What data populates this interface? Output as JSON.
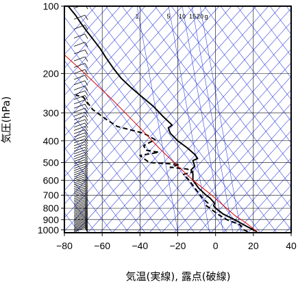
{
  "chart_data": {
    "type": "line",
    "title": "",
    "xlabel": "気温(実線), 露点(破線)",
    "ylabel": "気圧(hPa)",
    "xlim": [
      -80,
      40
    ],
    "ylim": [
      1030,
      100
    ],
    "y_scale": "log",
    "x_ticks": [
      -80,
      -60,
      -40,
      -20,
      0,
      20,
      40
    ],
    "x_tick_labels": [
      "−80",
      "−60",
      "−40",
      "−20",
      "0",
      "20",
      "40"
    ],
    "y_ticks": [
      100,
      200,
      300,
      400,
      500,
      600,
      700,
      800,
      900,
      1000
    ],
    "y_tick_labels": [
      "100",
      "200",
      "300",
      "400",
      "500",
      "600",
      "700",
      "800",
      "900",
      "1000"
    ],
    "mixing_ratio_labels": [
      "1",
      "5",
      "10",
      "15",
      "20",
      "g"
    ],
    "grid": true,
    "series": [
      {
        "role": "temperature",
        "style": "solid",
        "color": "#000000",
        "points": [
          [
            22.0,
            1020
          ],
          [
            20.0,
            1000
          ],
          [
            15.0,
            950
          ],
          [
            10.0,
            900
          ],
          [
            4.0,
            850
          ],
          [
            0.0,
            800
          ],
          [
            -1.0,
            780
          ],
          [
            -0.5,
            760
          ],
          [
            -3.0,
            720
          ],
          [
            -5.0,
            700
          ],
          [
            -9.0,
            650
          ],
          [
            -12.0,
            600
          ],
          [
            -12.0,
            560
          ],
          [
            -13.0,
            540
          ],
          [
            -11.0,
            520
          ],
          [
            -12.0,
            490
          ],
          [
            -9.5,
            480
          ],
          [
            -11.0,
            460
          ],
          [
            -15.0,
            430
          ],
          [
            -20.0,
            400
          ],
          [
            -24.0,
            370
          ],
          [
            -25.0,
            350
          ],
          [
            -23.0,
            340
          ],
          [
            -28.0,
            310
          ],
          [
            -33.0,
            280
          ],
          [
            -40.0,
            250
          ],
          [
            -45.0,
            230
          ],
          [
            -50.0,
            210
          ],
          [
            -54.0,
            190
          ],
          [
            -58.0,
            170
          ],
          [
            -61.0,
            155
          ],
          [
            -65.0,
            140
          ],
          [
            -68.0,
            130
          ],
          [
            -71.0,
            120
          ],
          [
            -74.0,
            110
          ],
          [
            -78.0,
            100
          ]
        ]
      },
      {
        "role": "dewpoint",
        "style": "dashed",
        "color": "#000000",
        "points": [
          [
            17.0,
            1020
          ],
          [
            15.0,
            1000
          ],
          [
            13.0,
            950
          ],
          [
            6.0,
            900
          ],
          [
            1.0,
            850
          ],
          [
            -3.0,
            800
          ],
          [
            -5.0,
            780
          ],
          [
            -4.0,
            760
          ],
          [
            -7.0,
            720
          ],
          [
            -11.0,
            650
          ],
          [
            -14.0,
            600
          ],
          [
            -17.0,
            565
          ],
          [
            -12.0,
            550
          ],
          [
            -15.0,
            535
          ],
          [
            -24.0,
            525
          ],
          [
            -19.0,
            510
          ],
          [
            -35.0,
            500
          ],
          [
            -38.0,
            480
          ],
          [
            -40.0,
            465
          ],
          [
            -30.0,
            450
          ],
          [
            -37.0,
            440
          ],
          [
            -38.0,
            420
          ],
          [
            -32.0,
            395
          ],
          [
            -38.0,
            370
          ],
          [
            -52.0,
            345
          ],
          [
            -58.0,
            320
          ],
          [
            -65.0,
            290
          ],
          [
            -70.0,
            255
          ],
          [
            -74.0,
            250
          ]
        ]
      },
      {
        "role": "parcel",
        "style": "solid",
        "color": "#dd0000",
        "points": [
          [
            22.0,
            1020
          ],
          [
            16.0,
            930
          ],
          [
            10.0,
            860
          ],
          [
            5.0,
            790
          ],
          [
            -2.0,
            700
          ],
          [
            -12.0,
            600
          ],
          [
            -22.0,
            500
          ],
          [
            -30.0,
            430
          ],
          [
            -40.0,
            350
          ],
          [
            -55.0,
            260
          ],
          [
            -72.0,
            190
          ],
          [
            -80.0,
            165
          ]
        ]
      }
    ]
  }
}
